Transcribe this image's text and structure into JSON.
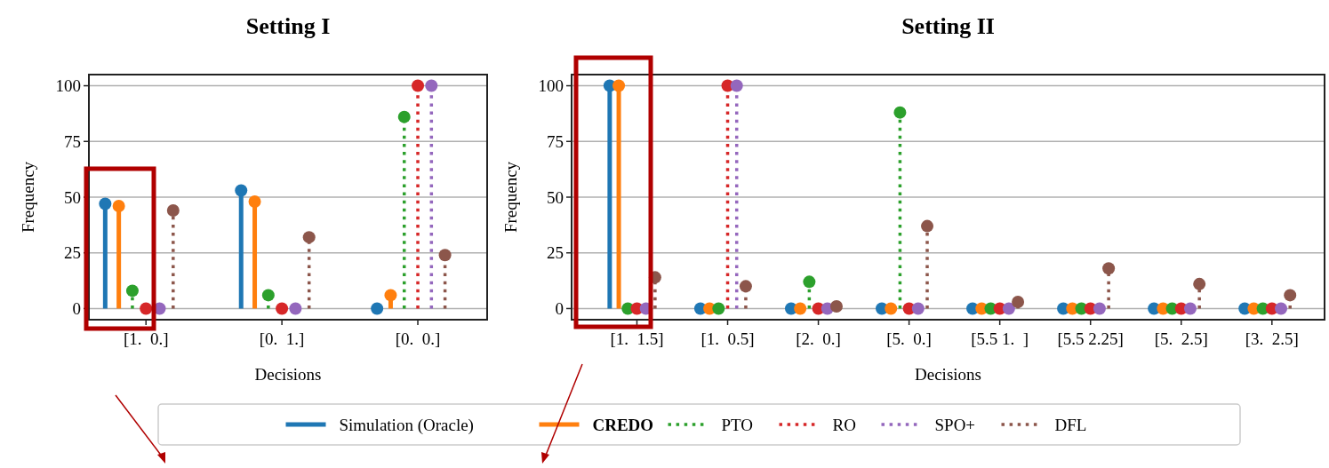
{
  "chart_data": [
    {
      "type": "lollipop",
      "title": "Setting I",
      "xlabel": "Decisions",
      "ylabel": "Frequency",
      "categories": [
        "[1.  0.]",
        "[0.  1.]",
        "[0.  0.]"
      ],
      "ylim": [
        -5,
        105
      ],
      "yticks": [
        0,
        25,
        50,
        75,
        100
      ],
      "grid": "y",
      "legend": "bottom",
      "marker": "circle",
      "series": [
        {
          "name": "Simulation (Oracle)",
          "color": "#1f77b4",
          "line_style": "solid",
          "values": [
            47,
            53,
            0
          ]
        },
        {
          "name": "CREDO",
          "color": "#ff7f0e",
          "line_style": "solid",
          "values": [
            46,
            48,
            6
          ]
        },
        {
          "name": "PTO",
          "color": "#2ca02c",
          "line_style": "dotted",
          "values": [
            8,
            6,
            86
          ]
        },
        {
          "name": "RO",
          "color": "#d62728",
          "line_style": "dotted",
          "values": [
            0,
            0,
            100
          ]
        },
        {
          "name": "SPO+",
          "color": "#9467bd",
          "line_style": "dotted",
          "values": [
            0,
            0,
            100
          ]
        },
        {
          "name": "DFL",
          "color": "#8c564b",
          "line_style": "dotted",
          "values": [
            44,
            32,
            24
          ]
        }
      ]
    },
    {
      "type": "lollipop",
      "title": "Setting II",
      "xlabel": "Decisions",
      "ylabel": "Frequency",
      "categories": [
        "[1.  1.5]",
        "[1.  0.5]",
        "[2.  0.]",
        "[5.  0.]",
        "[5.5 1.  ]",
        "[5.5 2.25]",
        "[5.  2.5]",
        "[3.  2.5]"
      ],
      "ylim": [
        -5,
        105
      ],
      "yticks": [
        0,
        25,
        50,
        75,
        100
      ],
      "grid": "y",
      "marker": "circle",
      "series": [
        {
          "color": "#1f77b4",
          "line_style": "solid",
          "values": [
            100,
            0,
            0,
            0,
            0,
            0,
            0,
            0
          ]
        },
        {
          "color": "#ff7f0e",
          "line_style": "solid",
          "values": [
            100,
            0,
            0,
            0,
            0,
            0,
            0,
            0
          ]
        },
        {
          "color": "#2ca02c",
          "line_style": "dotted",
          "values": [
            0,
            0,
            12,
            88,
            0,
            0,
            0,
            0
          ]
        },
        {
          "color": "#d62728",
          "line_style": "dotted",
          "values": [
            0,
            100,
            0,
            0,
            0,
            0,
            0,
            0
          ]
        },
        {
          "color": "#9467bd",
          "line_style": "dotted",
          "values": [
            0,
            100,
            0,
            0,
            0,
            0,
            0,
            0
          ]
        },
        {
          "color": "#8c564b",
          "line_style": "dotted",
          "values": [
            14,
            10,
            1,
            37,
            3,
            18,
            11,
            6
          ]
        }
      ]
    }
  ]
}
